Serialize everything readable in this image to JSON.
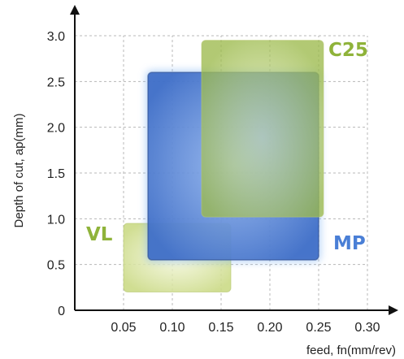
{
  "chart_data": {
    "type": "area",
    "xlabel": "feed, fn(mm/rev)",
    "ylabel": "Depth of cut, ap(mm)",
    "xlim": [
      0,
      0.3
    ],
    "ylim": [
      0,
      3.0
    ],
    "x_ticks": [
      "0.05",
      "0.10",
      "0.15",
      "0.20",
      "0.25",
      "0.30"
    ],
    "y_ticks": [
      "0",
      "0.5",
      "1.0",
      "1.5",
      "2.0",
      "2.5",
      "3.0"
    ],
    "grid": true,
    "regions": [
      {
        "name": "VL",
        "x": [
          0.05,
          0.16
        ],
        "y": [
          0.2,
          0.95
        ],
        "color": "#c6d77c"
      },
      {
        "name": "MP",
        "x": [
          0.075,
          0.25
        ],
        "y": [
          0.55,
          2.6
        ],
        "color": "#4a78cf"
      },
      {
        "name": "C25",
        "x": [
          0.13,
          0.255
        ],
        "y": [
          1.02,
          2.95
        ],
        "color": "#a8c45a"
      }
    ],
    "label_colors": {
      "VL": "#8fb33a",
      "MP": "#4a7fd6",
      "C25": "#8fb33a"
    }
  }
}
